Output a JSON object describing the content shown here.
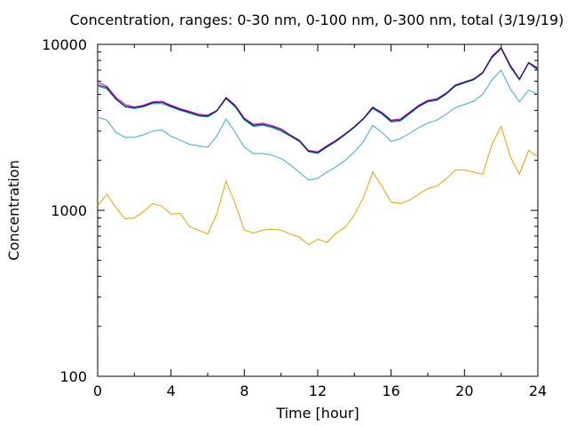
{
  "chart_data": {
    "type": "line",
    "title": "Concentration, ranges: 0-30 nm, 0-100 nm, 0-300 nm, total (3/19/19)",
    "xlabel": "Time [hour]",
    "ylabel": "Concentration",
    "xlim": [
      0,
      24
    ],
    "ylim": [
      100,
      10000
    ],
    "yscale": "log",
    "xticks": [
      0,
      4,
      8,
      12,
      16,
      20,
      24
    ],
    "xtick_labels": [
      "0",
      "4",
      "8",
      "12",
      "16",
      "20",
      "24"
    ],
    "yticks": [
      100,
      1000,
      10000
    ],
    "ytick_labels": [
      "100",
      "1000",
      "10000"
    ],
    "grid": false,
    "legend": "none",
    "x": [
      0,
      0.5,
      1,
      1.5,
      2,
      2.5,
      3,
      3.5,
      4,
      4.5,
      5,
      5.5,
      6,
      6.5,
      7,
      7.5,
      8,
      8.5,
      9,
      9.5,
      10,
      10.5,
      11,
      11.5,
      12,
      12.5,
      13,
      13.5,
      14,
      14.5,
      15,
      15.5,
      16,
      16.5,
      17,
      17.5,
      18,
      18.5,
      19,
      19.5,
      20,
      20.5,
      21,
      21.5,
      22,
      22.5,
      23,
      23.5,
      24
    ],
    "series": [
      {
        "color": "#cc00cc",
        "values": [
          5900,
          5600,
          4800,
          4350,
          4200,
          4300,
          4500,
          4550,
          4300,
          4100,
          3950,
          3800,
          3750,
          4000,
          4800,
          4300,
          3600,
          3300,
          3350,
          3250,
          3100,
          2850,
          2650,
          2300,
          2250,
          2450,
          2650,
          2900,
          3200,
          3600,
          4200,
          3900,
          3500,
          3550,
          3900,
          4300,
          4600,
          4700,
          5100,
          5700,
          5950,
          6200,
          6800,
          8500,
          9600,
          7500,
          6200,
          7800,
          7200
        ]
      },
      {
        "color": "#009e73",
        "values": [
          5600,
          5400,
          4650,
          4200,
          4100,
          4200,
          4400,
          4400,
          4200,
          4000,
          3850,
          3700,
          3650,
          3950,
          4700,
          4200,
          3500,
          3200,
          3250,
          3150,
          3000,
          2800,
          2600,
          2250,
          2200,
          2400,
          2600,
          2850,
          3150,
          3550,
          4100,
          3800,
          3400,
          3450,
          3800,
          4200,
          4500,
          4600,
          5000,
          5600,
          5850,
          6100,
          6700,
          8300,
          9400,
          7300,
          6100,
          7700,
          7000
        ]
      },
      {
        "color": "#101060",
        "values": [
          5700,
          5500,
          4700,
          4250,
          4150,
          4250,
          4450,
          4480,
          4250,
          4050,
          3900,
          3750,
          3700,
          3980,
          4750,
          4250,
          3550,
          3250,
          3300,
          3200,
          3050,
          2830,
          2620,
          2270,
          2230,
          2420,
          2620,
          2880,
          3180,
          3580,
          4150,
          3850,
          3450,
          3500,
          3850,
          4250,
          4550,
          4650,
          5050,
          5650,
          5900,
          6150,
          6750,
          8400,
          9500,
          7400,
          6150,
          7750,
          7100
        ]
      },
      {
        "color": "#3ba7d8",
        "values": [
          3650,
          3500,
          2950,
          2750,
          2750,
          2850,
          3000,
          3050,
          2800,
          2650,
          2500,
          2450,
          2400,
          2800,
          3550,
          2950,
          2400,
          2200,
          2200,
          2150,
          2050,
          1880,
          1700,
          1520,
          1560,
          1700,
          1830,
          2000,
          2250,
          2600,
          3250,
          2950,
          2600,
          2700,
          2900,
          3150,
          3350,
          3500,
          3800,
          4150,
          4350,
          4550,
          5000,
          6100,
          7000,
          5400,
          4500,
          5300,
          5000
        ]
      },
      {
        "color": "#e69f00",
        "values": [
          1070,
          1250,
          1040,
          890,
          900,
          980,
          1100,
          1060,
          950,
          960,
          800,
          760,
          720,
          950,
          1500,
          1100,
          760,
          730,
          760,
          770,
          760,
          720,
          690,
          620,
          670,
          640,
          730,
          790,
          940,
          1200,
          1700,
          1400,
          1120,
          1100,
          1150,
          1250,
          1350,
          1400,
          1550,
          1750,
          1750,
          1700,
          1650,
          2500,
          3200,
          2100,
          1650,
          2300,
          2100
        ]
      }
    ]
  }
}
